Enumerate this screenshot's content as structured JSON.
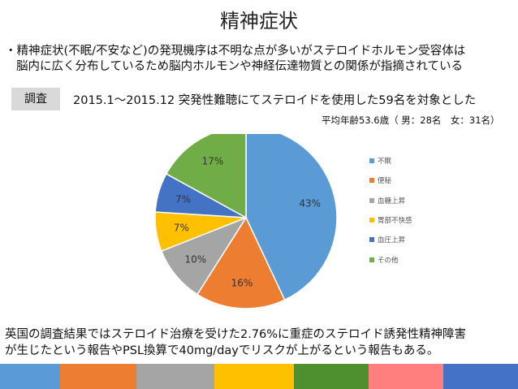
{
  "title": "精神症状",
  "bullet": {
    "line1": "・精神症状(不眠/不安など)の発現機序は不明な点が多いがステロイドホルモン受容体は",
    "line2": "脳内に広く分布しているため脳内ホルモンや神経伝達物質との関係が指摘されている"
  },
  "study": {
    "tag": "調査",
    "text": "2015.1～2015.12 突発性難聴にてステロイドを使用した59名を対象とした"
  },
  "demographics": "平均年齢53.6歳（ 男：28名　女：31名）",
  "chart_data": {
    "type": "pie",
    "categories": [
      "不眠",
      "便秘",
      "血糖上昇",
      "胃部不快感",
      "血圧上昇",
      "その他"
    ],
    "values": [
      43,
      16,
      10,
      7,
      7,
      17
    ],
    "labels": [
      "43%",
      "16%",
      "10%",
      "7%",
      "7%",
      "17%"
    ],
    "colors": [
      "#5b9bd5",
      "#ed7d31",
      "#a5a5a5",
      "#ffc000",
      "#4472c4",
      "#70ad47"
    ],
    "legend_position": "right"
  },
  "footnote": {
    "line1": "英国の調査結果ではステロイド治療を受けた2.76%に重症のステロイド誘発性精神障害",
    "line2": "が生じたという報告やPSL換算で40mg/dayでリスクが上がるという報告もある。"
  },
  "bottom_bar_colors": [
    "#5b9bd5",
    "#ed7d31",
    "#a5a5a5",
    "#ffc000",
    "#4e8f2f",
    "#ff7f7f",
    "#4472c4"
  ]
}
